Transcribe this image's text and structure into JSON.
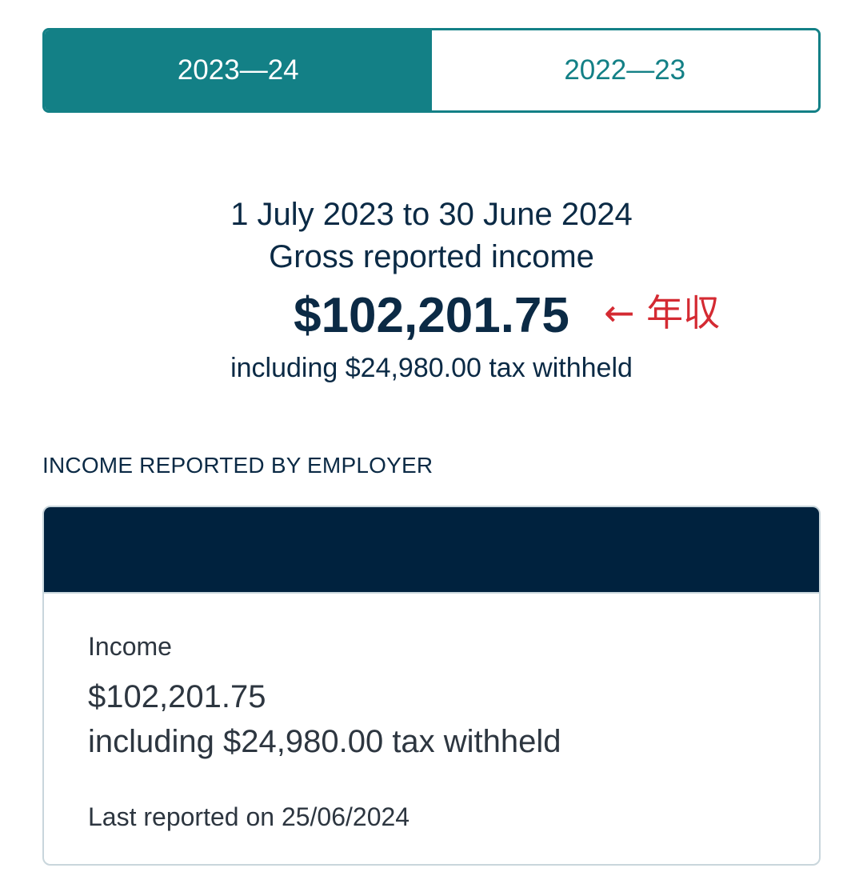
{
  "tabs": [
    {
      "label": "2023—24",
      "active": true
    },
    {
      "label": "2022—23",
      "active": false
    }
  ],
  "summary": {
    "period": "1 July 2023 to 30 June 2024",
    "label": "Gross reported income",
    "amount": "$102,201.75",
    "tax_line": "including $24,980.00 tax withheld",
    "annotation": "← 年収"
  },
  "section": {
    "heading": "INCOME REPORTED BY EMPLOYER"
  },
  "card": {
    "income_label": "Income",
    "amount": "$102,201.75",
    "tax_line": "including $24,980.00 tax withheld",
    "last_reported": "Last reported on 25/06/2024"
  },
  "colors": {
    "accent": "#138086",
    "dark_navy": "#00223e",
    "text": "#0b2a45",
    "annotation": "#d42a32"
  }
}
